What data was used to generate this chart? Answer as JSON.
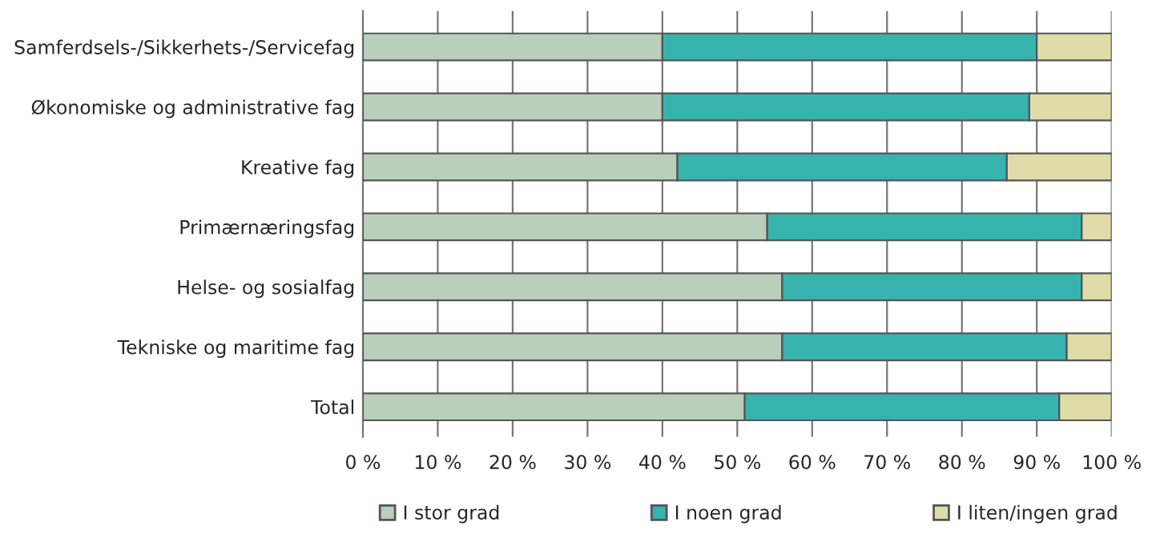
{
  "chart_data": {
    "type": "bar",
    "orientation": "horizontal",
    "stacked": true,
    "categories": [
      "Samferdsels-/Sikkerhets-/Servicefag",
      "Økonomiske og administrative fag",
      "Kreative fag",
      "Primærnæringsfag",
      "Helse- og sosialfag",
      "Tekniske og maritime fag",
      "Total"
    ],
    "series": [
      {
        "name": "I stor grad",
        "color": "#b9cfbc",
        "values": [
          40,
          40,
          42,
          54,
          56,
          56,
          51
        ]
      },
      {
        "name": "I noen grad",
        "color": "#37b3ae",
        "values": [
          50,
          49,
          44,
          42,
          40,
          38,
          42
        ]
      },
      {
        "name": "I liten/ingen grad",
        "color": "#e0dcaa",
        "values": [
          10,
          11,
          14,
          4,
          4,
          6,
          7
        ]
      }
    ],
    "xlim": [
      0,
      100
    ],
    "xticks": [
      {
        "value": 0,
        "label": "0 %"
      },
      {
        "value": 10,
        "label": "10 %"
      },
      {
        "value": 20,
        "label": "20 %"
      },
      {
        "value": 30,
        "label": "30 %"
      },
      {
        "value": 40,
        "label": "40 %"
      },
      {
        "value": 50,
        "label": "50 %"
      },
      {
        "value": 60,
        "label": "60 %"
      },
      {
        "value": 70,
        "label": "70 %"
      },
      {
        "value": 80,
        "label": "80 %"
      },
      {
        "value": 90,
        "label": "90 %"
      },
      {
        "value": 100,
        "label": "100 %"
      }
    ],
    "grid": "x",
    "legend": "bottom"
  }
}
